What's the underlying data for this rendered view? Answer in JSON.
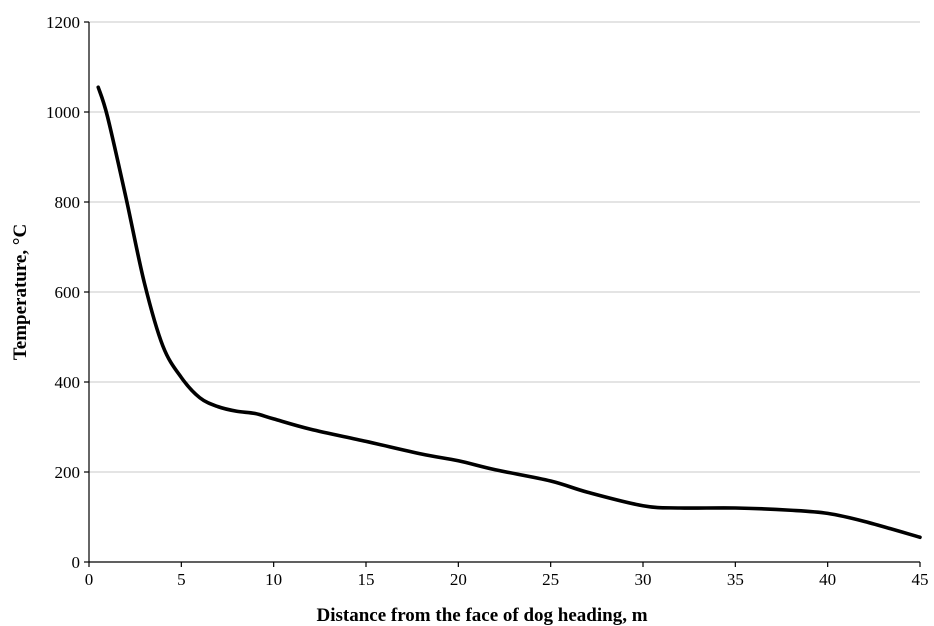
{
  "chart_data": {
    "type": "line",
    "title": "",
    "xlabel": "Distance from the face of dog heading, m",
    "ylabel": "Temperature, °C",
    "xlim": [
      0,
      45
    ],
    "ylim": [
      0,
      1200
    ],
    "xticks": [
      0,
      5,
      10,
      15,
      20,
      25,
      30,
      35,
      40,
      45
    ],
    "yticks": [
      0,
      200,
      400,
      600,
      800,
      1000,
      1200
    ],
    "grid": "horizontal",
    "legend": "none",
    "series": [
      {
        "color": "#000000",
        "x": [
          0.5,
          1,
          2,
          3,
          4,
          5,
          6,
          7,
          8,
          9,
          10,
          12,
          15,
          18,
          20,
          22,
          25,
          27,
          30,
          32,
          35,
          38,
          40,
          42,
          45
        ],
        "y": [
          1055,
          990,
          810,
          620,
          480,
          410,
          365,
          345,
          335,
          330,
          318,
          295,
          268,
          240,
          225,
          205,
          180,
          155,
          125,
          120,
          120,
          115,
          108,
          90,
          55
        ]
      }
    ]
  }
}
